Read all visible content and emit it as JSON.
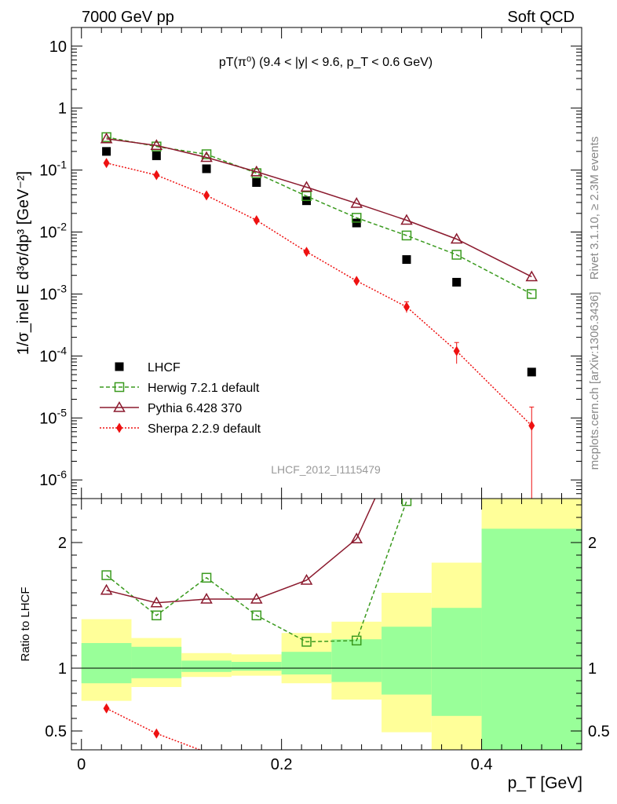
{
  "header": {
    "left": "7000 GeV pp",
    "right": "Soft QCD"
  },
  "side": {
    "rivet": "Rivet 3.1.10, ≥ 2.3M events",
    "mcplots": "mcplots.cern.ch [arXiv:1306.3436]"
  },
  "chart_data": [
    {
      "type": "scatter",
      "title": "pT(π⁰) (9.4 < |y| < 9.6, p_T < 0.6 GeV)",
      "ylabel": "1/σ_inel E d³σ/dp³ [GeV⁻²]",
      "xlabel": "p_T [GeV]",
      "yscale": "log",
      "xlim": [
        -0.01,
        0.5
      ],
      "ylim": [
        5e-07,
        20
      ],
      "watermark": "LHCF_2012_I1115479",
      "legend_position": "lower-left",
      "x": [
        0.025,
        0.075,
        0.125,
        0.175,
        0.225,
        0.275,
        0.325,
        0.375,
        0.45
      ],
      "x_edges": [
        0.0,
        0.05,
        0.1,
        0.15,
        0.2,
        0.25,
        0.3,
        0.35,
        0.4,
        0.5
      ],
      "series": [
        {
          "name": "LHCF",
          "color": "#000000",
          "marker": "square-filled",
          "line": "none",
          "values": [
            0.2,
            0.17,
            0.105,
            0.063,
            0.032,
            0.014,
            0.0036,
            0.00155,
            5.5e-05
          ]
        },
        {
          "name": "Herwig 7.2.1 default",
          "color": "#3a9a1e",
          "marker": "square-open",
          "line": "dashed",
          "values": [
            0.34,
            0.24,
            0.18,
            0.089,
            0.038,
            0.017,
            0.0088,
            0.0043,
            0.001
          ]
        },
        {
          "name": "Pythia 6.428 370",
          "color": "#8b1a2e",
          "marker": "triangle-open",
          "line": "solid",
          "values": [
            0.32,
            0.25,
            0.16,
            0.094,
            0.053,
            0.029,
            0.0155,
            0.0077,
            0.0019
          ]
        },
        {
          "name": "Sherpa 2.2.9 default",
          "color": "#ee1111",
          "marker": "diamond-filled",
          "line": "dotted",
          "values": [
            0.13,
            0.083,
            0.039,
            0.0155,
            0.0048,
            0.00163,
            0.00062,
            0.00012,
            7.5e-06
          ],
          "err_high": [
            0,
            0,
            0,
            0,
            0,
            0,
            0.00075,
            0.000165,
            1.5e-05
          ],
          "err_low": [
            0,
            0,
            0,
            0,
            0,
            0,
            0.0005,
            7.5e-05,
            1e-07
          ]
        }
      ]
    },
    {
      "type": "line",
      "ylabel": "Ratio to LHCF",
      "xlabel": "p_T [GeV]",
      "xlim": [
        -0.01,
        0.5
      ],
      "ylim": [
        0.35,
        2.35
      ],
      "x_ticks": [
        0,
        0.2,
        0.4
      ],
      "y_ticks": [
        0.5,
        1,
        2
      ],
      "reference_line": 1,
      "band_edges": [
        0.0,
        0.05,
        0.1,
        0.15,
        0.2,
        0.25,
        0.3,
        0.35,
        0.4,
        0.5
      ],
      "band_yellow": [
        [
          0.74,
          1.39
        ],
        [
          0.85,
          1.24
        ],
        [
          0.93,
          1.12
        ],
        [
          0.94,
          1.11
        ],
        [
          0.88,
          1.28
        ],
        [
          0.75,
          1.37
        ],
        [
          0.49,
          1.6
        ],
        [
          0.35,
          1.84
        ],
        [
          0.35,
          2.35
        ]
      ],
      "band_green": [
        [
          0.88,
          1.2
        ],
        [
          0.92,
          1.17
        ],
        [
          0.97,
          1.06
        ],
        [
          0.98,
          1.05
        ],
        [
          0.95,
          1.13
        ],
        [
          0.89,
          1.23
        ],
        [
          0.79,
          1.33
        ],
        [
          0.62,
          1.48
        ],
        [
          0.35,
          2.11
        ]
      ],
      "band_colors": {
        "outer": "#ffff99",
        "inner": "#99ff99"
      },
      "series": [
        {
          "name": "Herwig 7.2.1 default",
          "color": "#3a9a1e",
          "marker": "square-open",
          "line": "dashed",
          "values": [
            1.74,
            1.42,
            1.72,
            1.42,
            1.21,
            1.22,
            2.33
          ]
        },
        {
          "name": "Pythia 6.428 370",
          "color": "#8b1a2e",
          "marker": "triangle-open",
          "line": "solid",
          "values": [
            1.62,
            1.52,
            1.55,
            1.55,
            1.7,
            2.03,
            2.9
          ]
        },
        {
          "name": "Sherpa 2.2.9 default",
          "color": "#ee1111",
          "marker": "diamond-filled",
          "line": "dotted",
          "values": [
            0.68,
            0.48,
            0.33
          ]
        }
      ]
    }
  ]
}
